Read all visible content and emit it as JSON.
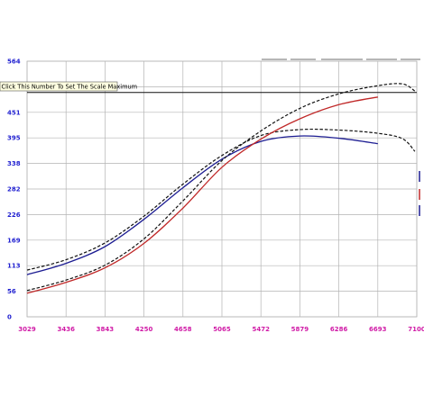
{
  "colors": {
    "background": "#ffffff",
    "plot_bg": "#ffffff",
    "grid": "#b4b4b4",
    "y_tick": "#1f1fd0",
    "x_tick": "#d01aa6",
    "series_blue": "#1c1c92",
    "series_red": "#c02828",
    "reference_dashed": "#111111",
    "max_line": "#111111",
    "tooltip_bg": "#ffffe1"
  },
  "tooltip": {
    "text": "Click This Number To Set The Scale Maximum"
  },
  "chart_data": {
    "type": "line",
    "title": "",
    "xlabel": "",
    "ylabel": "",
    "xlim": [
      3029,
      7100
    ],
    "ylim": [
      0,
      564
    ],
    "grid": true,
    "x_ticks": [
      "3029",
      "3436",
      "3843",
      "4250",
      "4658",
      "5065",
      "5472",
      "5879",
      "6286",
      "6693",
      "7100"
    ],
    "y_ticks": [
      "0",
      "56",
      "113",
      "169",
      "226",
      "282",
      "338",
      "395",
      "451",
      "508",
      "564"
    ],
    "max_line_y": 495,
    "series": [
      {
        "style": "solid",
        "color": "#1c1c92",
        "points": [
          [
            3029,
            93
          ],
          [
            3436,
            118
          ],
          [
            3843,
            155
          ],
          [
            4250,
            215
          ],
          [
            4658,
            285
          ],
          [
            5065,
            348
          ],
          [
            5472,
            387
          ],
          [
            5879,
            399
          ],
          [
            6286,
            394
          ],
          [
            6693,
            382
          ]
        ]
      },
      {
        "style": "dashed",
        "color": "#111111",
        "points": [
          [
            3029,
            103
          ],
          [
            3436,
            126
          ],
          [
            3843,
            163
          ],
          [
            4250,
            222
          ],
          [
            4658,
            293
          ],
          [
            5065,
            356
          ],
          [
            5472,
            400
          ],
          [
            5879,
            413
          ],
          [
            6286,
            412
          ],
          [
            6693,
            405
          ],
          [
            6950,
            393
          ],
          [
            7080,
            365
          ]
        ]
      },
      {
        "style": "solid",
        "color": "#c02828",
        "points": [
          [
            3029,
            52
          ],
          [
            3436,
            76
          ],
          [
            3843,
            108
          ],
          [
            4250,
            162
          ],
          [
            4658,
            240
          ],
          [
            5065,
            330
          ],
          [
            5472,
            392
          ],
          [
            5879,
            437
          ],
          [
            6286,
            468
          ],
          [
            6693,
            485
          ]
        ]
      },
      {
        "style": "dashed",
        "color": "#111111",
        "points": [
          [
            3029,
            58
          ],
          [
            3436,
            81
          ],
          [
            3843,
            114
          ],
          [
            4250,
            172
          ],
          [
            4658,
            256
          ],
          [
            5065,
            345
          ],
          [
            5472,
            410
          ],
          [
            5879,
            460
          ],
          [
            6286,
            492
          ],
          [
            6693,
            510
          ],
          [
            6950,
            514
          ],
          [
            7080,
            498
          ]
        ]
      }
    ]
  }
}
